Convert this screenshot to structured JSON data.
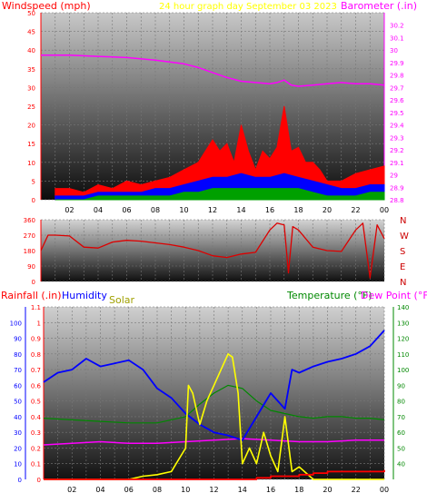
{
  "header": {
    "left_title": "Windspeed (mph)",
    "center_title": "24 hour graph day   September 03 2023",
    "right_title": "Barometer (.in)"
  },
  "panel3_titles": {
    "rain": "Rainfall (.in)",
    "humidity": "Humidity",
    "solar": "Solar",
    "temperature": "Temperature (°F)",
    "dewpoint": "Dew Point (°F)"
  },
  "compass": [
    "N",
    "W",
    "S",
    "E",
    "N"
  ],
  "colors": {
    "wind_gust": "#ff0000",
    "wind_avg": "#0000ff",
    "wind_low": "#00a000",
    "barometer": "#ff00ff",
    "direction": "#dd0000",
    "humidity": "#0000ff",
    "temperature": "#008800",
    "dewpoint": "#ff00ff",
    "solar": "#ffff00",
    "rainfall": "#ff0000",
    "left_axis_wind": "#ff0000",
    "left_axis_rain": "#ff0000",
    "humidity_axis": "#0000ff",
    "temp_axis": "#008800"
  },
  "chart_data": [
    {
      "type": "line",
      "panel": "wind",
      "x_ticks": [
        "02",
        "04",
        "06",
        "08",
        "10",
        "12",
        "14",
        "16",
        "18",
        "20",
        "22",
        "00"
      ],
      "y_left_ticks": [
        "0",
        "5",
        "10",
        "15",
        "20",
        "25",
        "30",
        "35",
        "40",
        "45",
        "50"
      ],
      "y_left_range": [
        0,
        50
      ],
      "y_right_ticks": [
        "28.8",
        "28.9",
        "29",
        "29.1",
        "29.2",
        "29.3",
        "29.4",
        "29.5",
        "29.6",
        "29.7",
        "29.8",
        "29.9",
        "30",
        "30.1",
        "30.2"
      ],
      "y_right_range": [
        28.8,
        30.3
      ],
      "series": [
        {
          "key": "gust",
          "x": [
            1,
            2,
            3,
            4,
            5,
            6,
            7,
            8,
            9,
            10,
            11,
            11.5,
            12,
            12.5,
            13,
            13.5,
            14,
            14.5,
            15,
            15.5,
            16,
            16.5,
            17,
            17.5,
            18,
            18.5,
            19,
            19.5,
            20,
            21,
            22,
            23,
            24
          ],
          "values": [
            3,
            3,
            2,
            4,
            3,
            5,
            4,
            5,
            6,
            8,
            10,
            13,
            16,
            13,
            15,
            10,
            20,
            13,
            8,
            13,
            11,
            14,
            25,
            13,
            14,
            10,
            10,
            8,
            5,
            5,
            7,
            8,
            9
          ]
        },
        {
          "key": "average",
          "x": [
            1,
            2,
            3,
            4,
            5,
            6,
            7,
            8,
            9,
            10,
            11,
            12,
            13,
            14,
            15,
            16,
            17,
            18,
            19,
            20,
            21,
            22,
            23,
            24
          ],
          "values": [
            1,
            1,
            1,
            2,
            2,
            2,
            2,
            3,
            3,
            4,
            5,
            6,
            6,
            7,
            6,
            6,
            7,
            6,
            5,
            4,
            3,
            3,
            4,
            4
          ]
        },
        {
          "key": "low",
          "x": [
            1,
            2,
            3,
            4,
            5,
            6,
            7,
            8,
            9,
            10,
            11,
            12,
            13,
            14,
            15,
            16,
            17,
            18,
            19,
            20,
            21,
            22,
            23,
            24
          ],
          "values": [
            0,
            0,
            0,
            1,
            1,
            1,
            1,
            1,
            1,
            2,
            2,
            3,
            3,
            3,
            3,
            3,
            3,
            3,
            2,
            1,
            1,
            1,
            2,
            2
          ]
        },
        {
          "key": "barometer",
          "x": [
            0,
            2,
            4,
            6,
            8,
            10,
            11,
            12,
            13,
            14,
            15,
            16,
            16.5,
            17,
            17.5,
            18,
            19,
            20,
            21,
            22,
            23,
            24
          ],
          "values": [
            29.96,
            29.96,
            29.95,
            29.94,
            29.92,
            29.89,
            29.86,
            29.82,
            29.78,
            29.75,
            29.74,
            29.73,
            29.74,
            29.76,
            29.72,
            29.71,
            29.72,
            29.73,
            29.74,
            29.73,
            29.73,
            29.72
          ]
        }
      ]
    },
    {
      "type": "line",
      "panel": "direction",
      "y_left_ticks": [
        "0",
        "90",
        "180",
        "270",
        "360"
      ],
      "y_range": [
        0,
        360
      ],
      "series": [
        {
          "key": "direction",
          "x": [
            0,
            0.5,
            1,
            2,
            3,
            4,
            5,
            6,
            7,
            8,
            9,
            10,
            11,
            12,
            13,
            14,
            15,
            16,
            16.5,
            17,
            17.3,
            17.6,
            18,
            19,
            20,
            21,
            22,
            22.5,
            23,
            23.5,
            24
          ],
          "values": [
            180,
            270,
            270,
            265,
            200,
            195,
            230,
            240,
            235,
            225,
            215,
            200,
            180,
            150,
            140,
            160,
            170,
            300,
            340,
            330,
            50,
            320,
            300,
            200,
            180,
            175,
            300,
            340,
            20,
            330,
            250
          ]
        }
      ]
    },
    {
      "type": "line",
      "panel": "rain_humidity_solar_temp",
      "y_left_ticks": [
        "0",
        "0.1",
        "0.2",
        "0.3",
        "0.4",
        "0.5",
        "0.6",
        "0.7",
        "0.8",
        "0.9",
        "1",
        "1.1"
      ],
      "y_left_range": [
        0,
        1.1
      ],
      "humidity_ticks": [
        "0",
        "10",
        "20",
        "30",
        "40",
        "50",
        "60",
        "70",
        "80",
        "90",
        "100"
      ],
      "humidity_range": [
        0,
        110
      ],
      "y_right_ticks": [
        "40",
        "50",
        "60",
        "70",
        "80",
        "90",
        "100",
        "110",
        "120",
        "130",
        "140"
      ],
      "y_right_range": [
        30,
        140
      ],
      "series": [
        {
          "key": "humidity",
          "x": [
            0,
            1,
            2,
            3,
            4,
            5,
            6,
            7,
            8,
            9,
            10,
            11,
            12,
            13,
            14,
            15,
            16,
            17,
            17.5,
            18,
            19,
            20,
            21,
            22,
            23,
            24
          ],
          "values": [
            62,
            68,
            70,
            77,
            72,
            74,
            76,
            70,
            58,
            52,
            42,
            35,
            30,
            28,
            25,
            40,
            55,
            45,
            70,
            68,
            72,
            75,
            77,
            80,
            85,
            95
          ]
        },
        {
          "key": "temperature",
          "x": [
            0,
            2,
            4,
            6,
            8,
            10,
            11,
            12,
            13,
            14,
            15,
            16,
            17,
            18,
            19,
            20,
            21,
            22,
            23,
            24
          ],
          "values": [
            69,
            68,
            67,
            66,
            66,
            70,
            78,
            85,
            90,
            88,
            80,
            74,
            72,
            70,
            69,
            70,
            70,
            69,
            69,
            68
          ]
        },
        {
          "key": "dewpoint",
          "x": [
            0,
            2,
            4,
            6,
            8,
            10,
            12,
            14,
            16,
            18,
            20,
            22,
            24
          ],
          "values": [
            52,
            53,
            54,
            53,
            53,
            54,
            55,
            56,
            55,
            54,
            54,
            55,
            55
          ]
        },
        {
          "key": "solar",
          "x": [
            0,
            6,
            7,
            8,
            9,
            10,
            10.2,
            10.5,
            11,
            11.5,
            12,
            12.5,
            13,
            13.3,
            13.7,
            14,
            14.5,
            15,
            15.5,
            16,
            16.5,
            17,
            17.5,
            18,
            18.5,
            19,
            24
          ],
          "values": [
            0,
            0,
            0.02,
            0.03,
            0.05,
            0.2,
            0.6,
            0.55,
            0.35,
            0.5,
            0.6,
            0.7,
            0.8,
            0.78,
            0.55,
            0.1,
            0.2,
            0.1,
            0.3,
            0.15,
            0.05,
            0.4,
            0.05,
            0.08,
            0.04,
            0,
            0
          ]
        },
        {
          "key": "rainfall",
          "x": [
            0,
            14,
            15,
            16,
            17,
            18,
            19,
            20,
            21,
            22,
            23,
            24
          ],
          "values": [
            0,
            0,
            0.01,
            0.02,
            0.02,
            0.03,
            0.04,
            0.05,
            0.05,
            0.05,
            0.05,
            0.06
          ]
        }
      ]
    }
  ]
}
